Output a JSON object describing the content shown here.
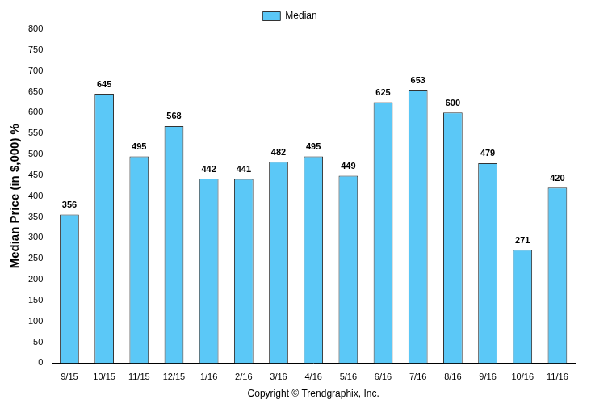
{
  "chart_data": {
    "type": "bar",
    "y_label": "Median Price (in $,000) %",
    "x_label": "Copyright © Trendgraphix, Inc.",
    "categories": [
      "9/15",
      "10/15",
      "11/15",
      "12/15",
      "1/16",
      "2/16",
      "3/16",
      "4/16",
      "5/16",
      "6/16",
      "7/16",
      "8/16",
      "9/16",
      "10/16",
      "11/16"
    ],
    "series": [
      {
        "name": "Median",
        "color": "#5bc8f7",
        "values": [
          356,
          645,
          495,
          568,
          442,
          441,
          482,
          495,
          449,
          625,
          653,
          600,
          479,
          271,
          420
        ]
      }
    ],
    "ylim": [
      0,
      800
    ],
    "yticks": [
      0,
      50,
      100,
      150,
      200,
      250,
      300,
      350,
      400,
      450,
      500,
      550,
      600,
      650,
      700,
      750,
      800
    ],
    "grid": false,
    "legend": "top",
    "data_labels": true
  }
}
